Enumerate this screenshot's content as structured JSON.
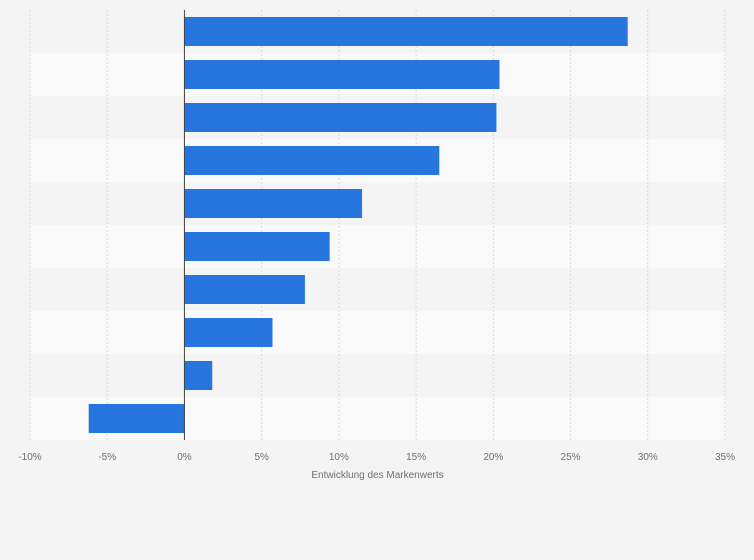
{
  "chart_data": {
    "type": "bar",
    "orientation": "horizontal",
    "title": "",
    "xlabel": "Entwicklung des Markenwerts",
    "ylabel": "",
    "categories": [
      "",
      "",
      "",
      "",
      "",
      "",
      "",
      "",
      "",
      ""
    ],
    "values": [
      28.7,
      20.4,
      20.2,
      16.5,
      11.5,
      9.4,
      7.8,
      5.7,
      1.8,
      -6.2
    ],
    "xlim": [
      -10,
      35
    ],
    "xticks": [
      -10,
      -5,
      0,
      5,
      10,
      15,
      20,
      25,
      30,
      35
    ],
    "xtick_labels": [
      "-10%",
      "-5%",
      "0%",
      "5%",
      "10%",
      "15%",
      "20%",
      "25%",
      "30%",
      "35%"
    ],
    "grid": true,
    "legend": "none",
    "bar_color": "#2775de",
    "band_colors": [
      "#f4f4f4",
      "#f9f9f9"
    ],
    "gridline_color": "#dcdcdc",
    "zero_line_color": "#444444"
  }
}
